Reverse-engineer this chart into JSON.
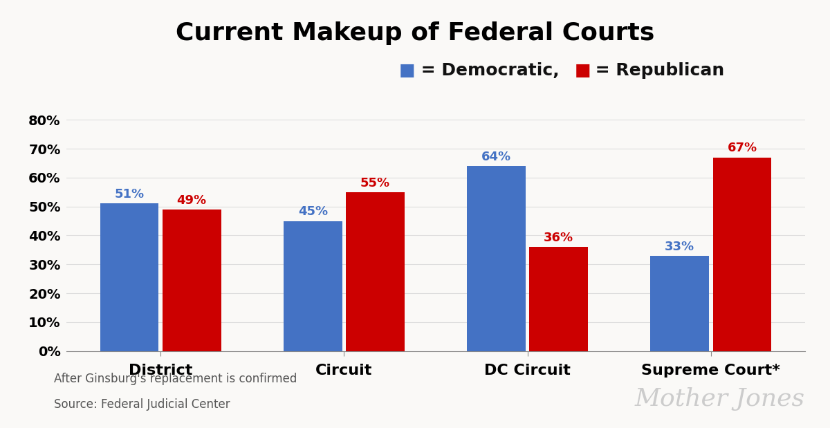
{
  "title": "Current Makeup of Federal Courts",
  "title_fontsize": 26,
  "title_fontweight": "bold",
  "categories": [
    "District",
    "Circuit",
    "DC Circuit",
    "Supreme Court*"
  ],
  "democratic": [
    51,
    45,
    64,
    33
  ],
  "republican": [
    49,
    55,
    36,
    67
  ],
  "dem_color": "#4472C4",
  "rep_color": "#CC0000",
  "bar_width": 0.32,
  "ylim": [
    0,
    80
  ],
  "yticks": [
    0,
    10,
    20,
    30,
    40,
    50,
    60,
    70,
    80
  ],
  "ytick_labels": [
    "0%",
    "10%",
    "20%",
    "30%",
    "40%",
    "50%",
    "60%",
    "70%",
    "80%"
  ],
  "footnote_line1": "After Ginsburg's replacement is confirmed",
  "footnote_line2": "Source: Federal Judicial Center",
  "watermark": "Mother Jones",
  "background_color": "#FAF9F7",
  "plot_background": "#FAF9F7",
  "grid_color": "#DDDDDD",
  "ytick_fontsize": 14,
  "ytick_fontweight": "bold",
  "category_fontsize": 16,
  "category_fontweight": "bold",
  "value_label_fontsize": 13,
  "footnote_fontsize": 12,
  "watermark_fontsize": 26,
  "watermark_color": "#CCCCCC",
  "subtitle_dem_color": "#4472C4",
  "subtitle_rep_color": "#CC0000",
  "subtitle_fontsize": 18,
  "subtitle_text_color": "#111111"
}
